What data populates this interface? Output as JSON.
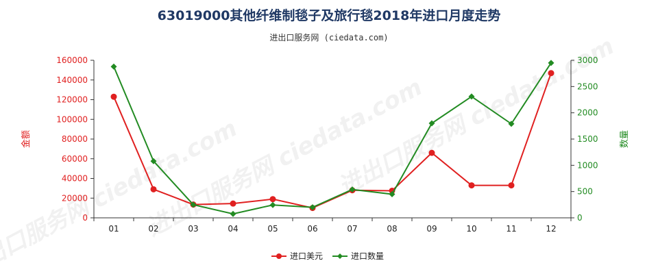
{
  "title": "63019000其他纤维制毯子及旅行毯2018年进口月度走势",
  "subtitle": "进出口服务网 (ciedata.com)",
  "watermark": "进出口服务网 ciedata.com",
  "colors": {
    "amount": "#e02020",
    "quantity": "#228b22",
    "title": "#1f3864"
  },
  "chart_data": {
    "type": "line",
    "categories": [
      "01",
      "02",
      "03",
      "04",
      "05",
      "06",
      "07",
      "08",
      "09",
      "10",
      "11",
      "12"
    ],
    "series": [
      {
        "name": "进口美元",
        "axis": "left",
        "values": [
          123000,
          29000,
          13500,
          14500,
          19000,
          10000,
          28000,
          27500,
          66000,
          33000,
          33000,
          147000
        ]
      },
      {
        "name": "进口数量",
        "axis": "right",
        "values": [
          2880,
          1080,
          250,
          75,
          245,
          200,
          540,
          450,
          1800,
          2310,
          1790,
          2950
        ]
      }
    ],
    "ylabel_left": "金额",
    "ylabel_right": "数量",
    "ylim_left": [
      0,
      160000
    ],
    "ylim_right": [
      0,
      3000
    ],
    "yticks_left": [
      "0",
      "20000",
      "40000",
      "60000",
      "80000",
      "100000",
      "120000",
      "140000",
      "160000"
    ],
    "yticks_right": [
      "0",
      "500",
      "1000",
      "1500",
      "2000",
      "2500",
      "3000"
    ],
    "legend_position": "bottom",
    "grid": false
  }
}
